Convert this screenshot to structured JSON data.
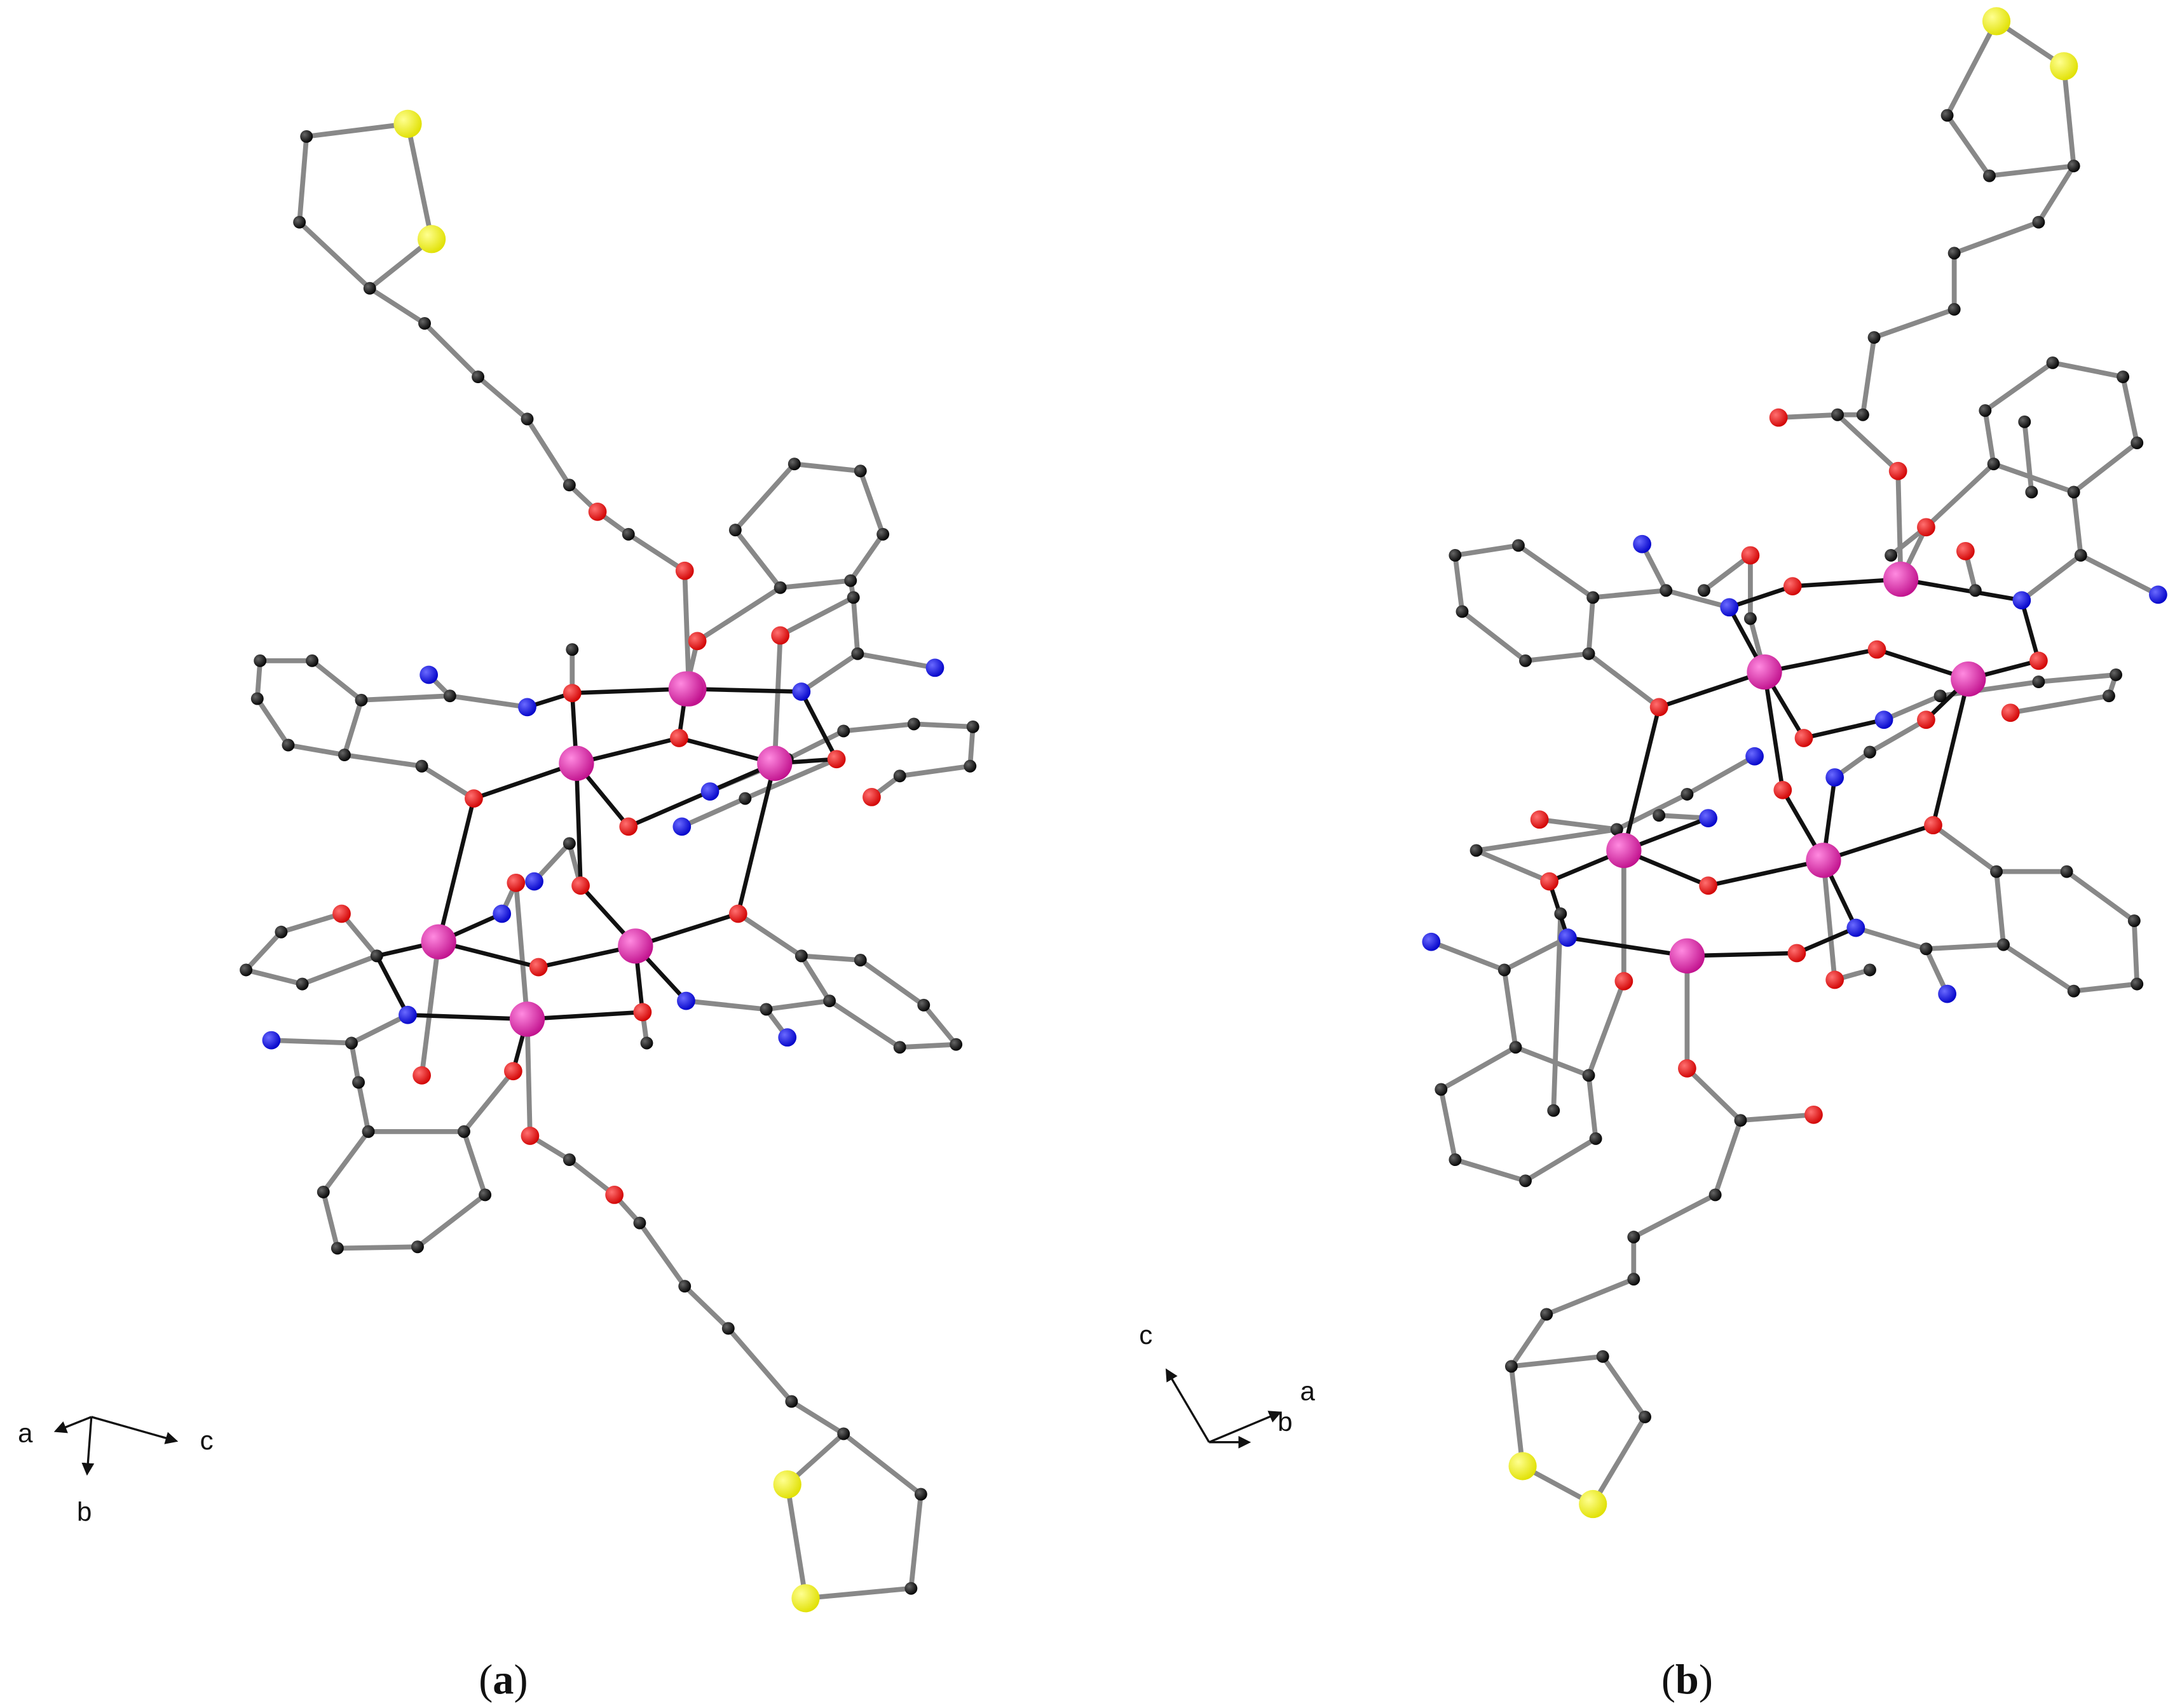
{
  "panels": [
    {
      "caption": {
        "open": "(",
        "label": "a",
        "close": ")"
      },
      "axes": [
        "a",
        "b",
        "c"
      ]
    },
    {
      "caption": {
        "open": "(",
        "label": "b",
        "close": ")"
      },
      "axes": [
        "c",
        "a",
        "b"
      ]
    }
  ]
}
